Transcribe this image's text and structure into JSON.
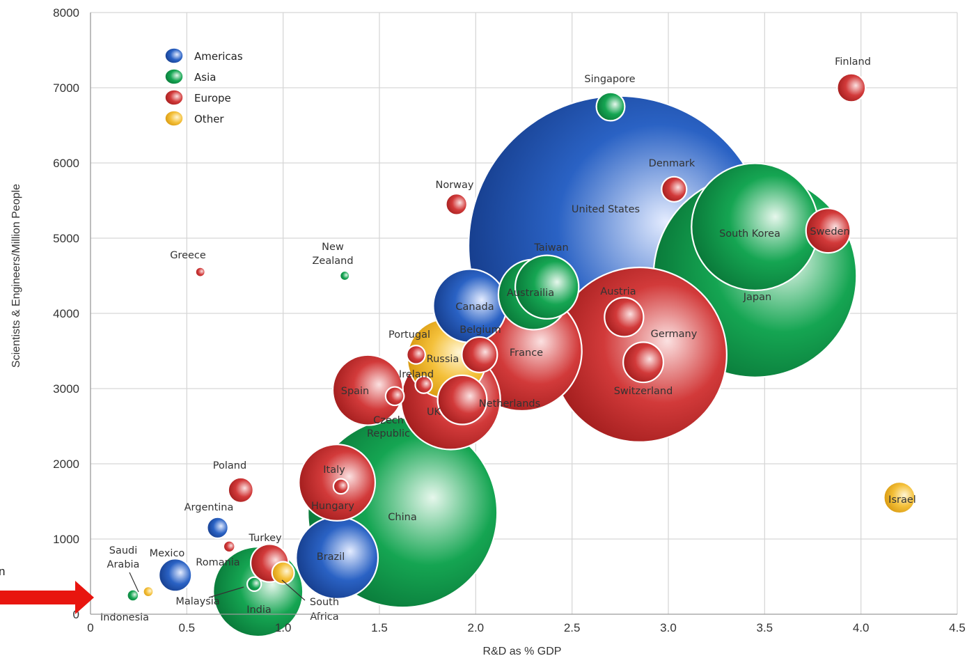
{
  "chart_data": {
    "type": "scatter",
    "subtype": "bubble",
    "title": "",
    "xlabel": "R&D as % GDP",
    "ylabel": "Scientists & Engineers/Million People",
    "xlim": [
      0,
      4.5
    ],
    "ylim": [
      0,
      8000
    ],
    "x_ticks": [
      "0",
      "0.5",
      "1.0",
      "1.5",
      "2.0",
      "2.5",
      "3.0",
      "3.5",
      "4.0",
      "4.5"
    ],
    "y_ticks": [
      "0",
      "1000",
      "2000",
      "3000",
      "4000",
      "5000",
      "6000",
      "7000",
      "8000"
    ],
    "grid": true,
    "legend": {
      "position": "top-left",
      "entries": [
        {
          "name": "Americas",
          "color": "#1f4fa8"
        },
        {
          "name": "Asia",
          "color": "#0e9a4b"
        },
        {
          "name": "Europe",
          "color": "#cf2f2f"
        },
        {
          "name": "Other",
          "color": "#f2b51c"
        }
      ]
    },
    "colors": {
      "Americas": [
        "#e4ecff",
        "#2a62c4",
        "#173f8f"
      ],
      "Asia": [
        "#e6f7ec",
        "#15a552",
        "#0a7a3a"
      ],
      "Europe": [
        "#fbe1e1",
        "#d23a3a",
        "#a51f1f"
      ],
      "Other": [
        "#fff6d6",
        "#f4c03a",
        "#d99a10"
      ]
    },
    "series": [
      {
        "country": "United States",
        "region": "Americas",
        "x": 2.74,
        "y": 4900,
        "size": 100
      },
      {
        "country": "Japan",
        "region": "Asia",
        "x": 3.45,
        "y": 4500,
        "size": 46
      },
      {
        "country": "China",
        "region": "Asia",
        "x": 1.62,
        "y": 1350,
        "size": 40
      },
      {
        "country": "Germany",
        "region": "Europe",
        "x": 2.85,
        "y": 3450,
        "size": 34
      },
      {
        "country": "South Korea",
        "region": "Asia",
        "x": 3.45,
        "y": 5150,
        "size": 18
      },
      {
        "country": "France",
        "region": "Europe",
        "x": 2.24,
        "y": 3500,
        "size": 16
      },
      {
        "country": "UK",
        "region": "Europe",
        "x": 1.87,
        "y": 2850,
        "size": 11
      },
      {
        "country": "India",
        "region": "Asia",
        "x": 0.87,
        "y": 300,
        "size": 9
      },
      {
        "country": "Brazil",
        "region": "Americas",
        "x": 1.28,
        "y": 750,
        "size": 7.5
      },
      {
        "country": "Italy",
        "region": "Europe",
        "x": 1.28,
        "y": 1750,
        "size": 6.5
      },
      {
        "country": "Russia",
        "region": "Other",
        "x": 1.85,
        "y": 3400,
        "size": 7
      },
      {
        "country": "Canada",
        "region": "Americas",
        "x": 1.97,
        "y": 4100,
        "size": 6
      },
      {
        "country": "Spain",
        "region": "Europe",
        "x": 1.44,
        "y": 2980,
        "size": 5.5
      },
      {
        "country": "Taiwan",
        "region": "Asia",
        "x": 2.37,
        "y": 4350,
        "size": 4.5
      },
      {
        "country": "Australia",
        "region": "Asia",
        "x": 2.3,
        "y": 4250,
        "size": 5.5
      },
      {
        "country": "Sweden",
        "region": "Europe",
        "x": 3.83,
        "y": 5100,
        "size": 2.2
      },
      {
        "country": "Netherlands",
        "region": "Europe",
        "x": 1.93,
        "y": 2850,
        "size": 2.7
      },
      {
        "country": "Switzerland",
        "region": "Europe",
        "x": 2.87,
        "y": 3350,
        "size": 1.8
      },
      {
        "country": "Austria",
        "region": "Europe",
        "x": 2.77,
        "y": 3950,
        "size": 1.7
      },
      {
        "country": "Belgium",
        "region": "Europe",
        "x": 2.02,
        "y": 3450,
        "size": 1.4
      },
      {
        "country": "Turkey",
        "region": "Europe",
        "x": 0.93,
        "y": 680,
        "size": 1.6
      },
      {
        "country": "Mexico",
        "region": "Americas",
        "x": 0.44,
        "y": 520,
        "size": 1.2
      },
      {
        "country": "Singapore",
        "region": "Asia",
        "x": 2.7,
        "y": 6750,
        "size": 0.9
      },
      {
        "country": "Israel",
        "region": "Other",
        "x": 4.2,
        "y": 1550,
        "size": 1.1
      },
      {
        "country": "Finland",
        "region": "Europe",
        "x": 3.95,
        "y": 7000,
        "size": 0.9
      },
      {
        "country": "Denmark",
        "region": "Europe",
        "x": 3.03,
        "y": 5650,
        "size": 0.7
      },
      {
        "country": "Poland",
        "region": "Europe",
        "x": 0.78,
        "y": 1650,
        "size": 0.7
      },
      {
        "country": "Argentina",
        "region": "Americas",
        "x": 0.66,
        "y": 1150,
        "size": 0.5
      },
      {
        "country": "Norway",
        "region": "Europe",
        "x": 1.9,
        "y": 5450,
        "size": 0.5
      },
      {
        "country": "Portugal",
        "region": "Europe",
        "x": 1.69,
        "y": 3450,
        "size": 0.38
      },
      {
        "country": "Czech Republic",
        "region": "Europe",
        "x": 1.58,
        "y": 2900,
        "size": 0.38
      },
      {
        "country": "Ireland",
        "region": "Europe",
        "x": 1.73,
        "y": 3050,
        "size": 0.32
      },
      {
        "country": "Hungary",
        "region": "Europe",
        "x": 1.3,
        "y": 1700,
        "size": 0.25
      },
      {
        "country": "South Africa",
        "region": "Other",
        "x": 1.0,
        "y": 550,
        "size": 0.55
      },
      {
        "country": "Malaysia",
        "region": "Asia",
        "x": 0.85,
        "y": 400,
        "size": 0.22
      },
      {
        "country": "Romania",
        "region": "Europe",
        "x": 0.72,
        "y": 900,
        "size": 0.15
      },
      {
        "country": "Greece",
        "region": "Europe",
        "x": 0.57,
        "y": 4550,
        "size": 0.1
      },
      {
        "country": "New Zealand",
        "region": "Asia",
        "x": 1.32,
        "y": 4500,
        "size": 0.1
      },
      {
        "country": "Indonesia",
        "region": "Asia",
        "x": 0.22,
        "y": 250,
        "size": 0.15
      },
      {
        "country": "Saudi Arabia",
        "region": "Other",
        "x": 0.3,
        "y": 300,
        "size": 0.12
      }
    ],
    "labels": [
      {
        "text": "United States"
      },
      {
        "text": "Japan"
      },
      {
        "text": "China"
      },
      {
        "text": "Germany"
      },
      {
        "text": "South Korea"
      },
      {
        "text": "France"
      },
      {
        "text": "UK"
      },
      {
        "text": "India"
      },
      {
        "text": "Brazil"
      },
      {
        "text": "Italy"
      },
      {
        "text": "Russia"
      },
      {
        "text": "Canada"
      },
      {
        "text": "Spain"
      },
      {
        "text": "Taiwan"
      },
      {
        "text": "Austrailia"
      },
      {
        "text": "Sweden"
      },
      {
        "text": "Netherlands"
      },
      {
        "text": "Switzerland"
      },
      {
        "text": "Austria"
      },
      {
        "text": "Belgium"
      },
      {
        "text": "Turkey"
      },
      {
        "text": "Mexico"
      },
      {
        "text": "Singapore"
      },
      {
        "text": "Israel"
      },
      {
        "text": "Finland"
      },
      {
        "text": "Denmark"
      },
      {
        "text": "Poland"
      },
      {
        "text": "Argentina"
      },
      {
        "text": "Norway"
      },
      {
        "text": "Portugal"
      },
      {
        "text": "Czech"
      },
      {
        "text": "Republic"
      },
      {
        "text": "Ireland"
      },
      {
        "text": "Hungary"
      },
      {
        "text": "South"
      },
      {
        "text": "Africa"
      },
      {
        "text": "Malaysia"
      },
      {
        "text": "Romania"
      },
      {
        "text": "Greece"
      },
      {
        "text": "New"
      },
      {
        "text": "Zealand"
      },
      {
        "text": "Indonesia"
      },
      {
        "text": "Saudi"
      },
      {
        "text": "Arabia"
      }
    ]
  },
  "annotation": {
    "arrow_color": "#e8150f",
    "edge_text": "n"
  }
}
